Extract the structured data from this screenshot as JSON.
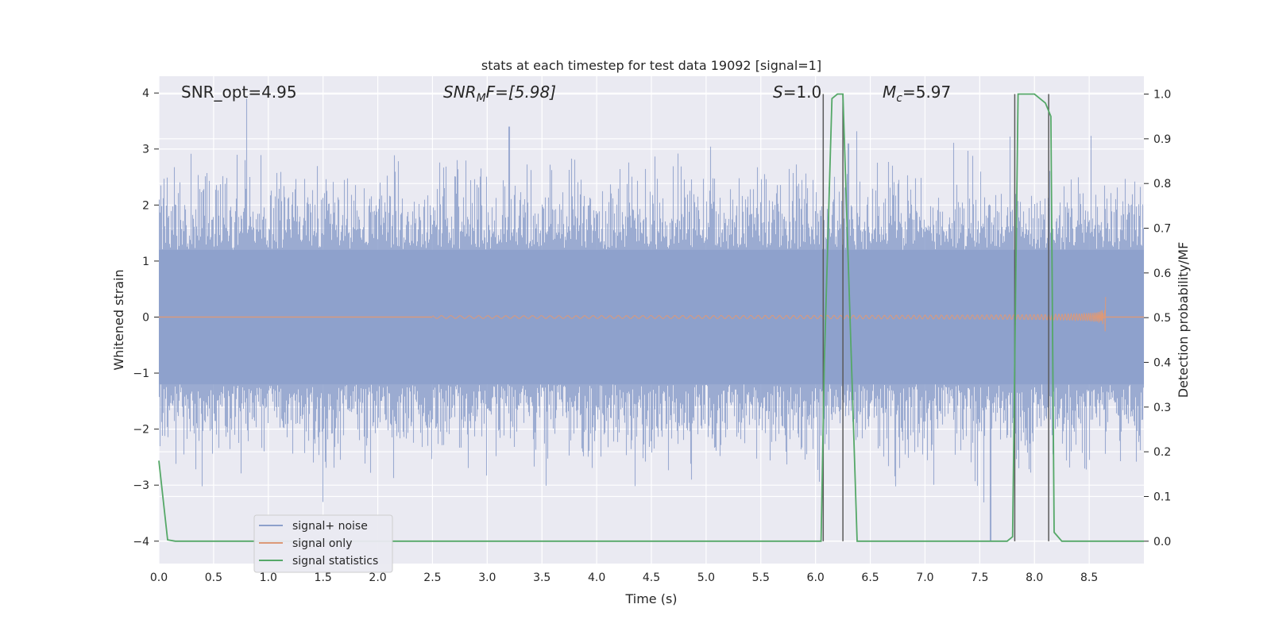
{
  "chart_data": {
    "type": "line",
    "title": "stats at each timestep for test data 19092 [signal=1]",
    "xlabel": "Time (s)",
    "ylabel_left": "Whitened strain",
    "ylabel_right": "Detection probability/MF",
    "xlim": [
      0,
      9
    ],
    "ylim_left": [
      -4.4,
      4.3
    ],
    "ylim_right": [
      -0.05,
      1.04
    ],
    "grid": true,
    "legend_position": "lower-left",
    "x_ticks": [
      "0.0",
      "0.5",
      "1.0",
      "1.5",
      "2.0",
      "2.5",
      "3.0",
      "3.5",
      "4.0",
      "4.5",
      "5.0",
      "5.5",
      "6.0",
      "6.5",
      "7.0",
      "7.5",
      "8.0",
      "8.5"
    ],
    "x_tick_values": [
      0,
      0.5,
      1,
      1.5,
      2,
      2.5,
      3,
      3.5,
      4,
      4.5,
      5,
      5.5,
      6,
      6.5,
      7,
      7.5,
      8,
      8.5
    ],
    "y_ticks_left": [
      "−4",
      "−3",
      "−2",
      "−1",
      "0",
      "1",
      "2",
      "3",
      "4"
    ],
    "y_tick_values_left": [
      -4,
      -3,
      -2,
      -1,
      0,
      1,
      2,
      3,
      4
    ],
    "y_ticks_right": [
      "0.0",
      "0.1",
      "0.2",
      "0.3",
      "0.4",
      "0.5",
      "0.6",
      "0.7",
      "0.8",
      "0.9",
      "1.0"
    ],
    "y_tick_values_right": [
      0,
      0.1,
      0.2,
      0.3,
      0.4,
      0.5,
      0.6,
      0.7,
      0.8,
      0.9,
      1.0
    ],
    "annotations": {
      "snr_opt": "SNR_opt=4.95",
      "snr_mf_base": "SNR",
      "snr_mf_sub": "M",
      "snr_mf_rest": "F=[5.98]",
      "s_italic": "S",
      "s_rest": "=1.0",
      "mc_base": "M",
      "mc_sub": "c",
      "mc_rest": "=5.97"
    },
    "series": [
      {
        "name": "signal+ noise",
        "color": "#8da0cb",
        "style": "noise band",
        "peaks": [
          [
            0.8,
            3.9
          ],
          [
            1.5,
            -3.3
          ],
          [
            7.6,
            -4.0
          ],
          [
            6.3,
            3.1
          ],
          [
            3.2,
            3.4
          ]
        ]
      },
      {
        "name": "signal only",
        "color": "#dd9978",
        "style": "chirp",
        "start_time": 2.5,
        "end_time": 8.65,
        "max_amplitude": 0.45
      },
      {
        "name": "signal statistics",
        "color": "#55a868",
        "axis": "right",
        "x": [
          0.0,
          0.08,
          0.15,
          6.05,
          6.08,
          6.15,
          6.2,
          6.25,
          6.38,
          7.75,
          7.8,
          7.85,
          8.0,
          8.1,
          8.15,
          8.18,
          8.25,
          8.3,
          9.0
        ],
        "y": [
          0.18,
          0.003,
          0.0,
          0.0,
          0.4,
          0.99,
          1.0,
          1.0,
          0.0,
          0.0,
          0.01,
          1.0,
          1.0,
          0.98,
          0.95,
          0.02,
          0.0,
          0.0,
          0.0
        ]
      }
    ],
    "vlines": [
      6.07,
      6.25,
      7.82,
      8.13
    ],
    "vline_color": "#5a5a5a"
  }
}
